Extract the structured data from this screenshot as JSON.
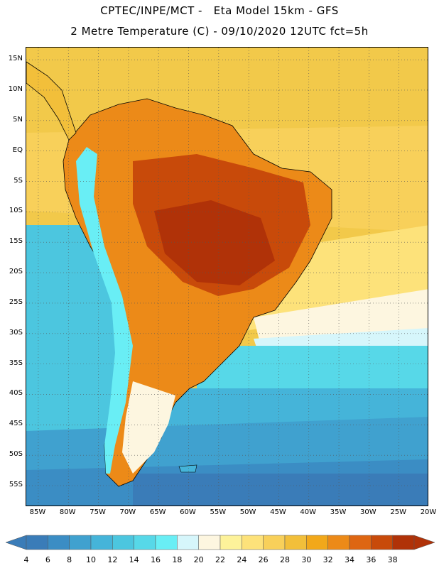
{
  "header": {
    "title_line1": "CPTEC/INPE/MCT -   Eta Model 15km - GFS",
    "title_line2": "2 Metre Temperature (C) - 09/10/2020 12UTC fct=5h"
  },
  "map": {
    "lat_ticks": [
      {
        "value": 15,
        "label": "15N"
      },
      {
        "value": 10,
        "label": "10N"
      },
      {
        "value": 5,
        "label": "5N"
      },
      {
        "value": 0,
        "label": "EQ"
      },
      {
        "value": -5,
        "label": "5S"
      },
      {
        "value": -10,
        "label": "10S"
      },
      {
        "value": -15,
        "label": "15S"
      },
      {
        "value": -20,
        "label": "20S"
      },
      {
        "value": -25,
        "label": "25S"
      },
      {
        "value": -30,
        "label": "30S"
      },
      {
        "value": -35,
        "label": "35S"
      },
      {
        "value": -40,
        "label": "40S"
      },
      {
        "value": -45,
        "label": "45S"
      },
      {
        "value": -50,
        "label": "50S"
      },
      {
        "value": -55,
        "label": "55S"
      }
    ],
    "lon_ticks": [
      {
        "value": -85,
        "label": "85W"
      },
      {
        "value": -80,
        "label": "80W"
      },
      {
        "value": -75,
        "label": "75W"
      },
      {
        "value": -70,
        "label": "70W"
      },
      {
        "value": -65,
        "label": "65W"
      },
      {
        "value": -60,
        "label": "60W"
      },
      {
        "value": -55,
        "label": "55W"
      },
      {
        "value": -50,
        "label": "50W"
      },
      {
        "value": -45,
        "label": "45W"
      },
      {
        "value": -40,
        "label": "40W"
      },
      {
        "value": -35,
        "label": "35W"
      },
      {
        "value": -30,
        "label": "30W"
      },
      {
        "value": -25,
        "label": "25W"
      },
      {
        "value": -20,
        "label": "20W"
      }
    ]
  },
  "colorbar": {
    "levels": [
      "4",
      "6",
      "8",
      "10",
      "12",
      "14",
      "16",
      "18",
      "20",
      "22",
      "24",
      "26",
      "28",
      "30",
      "32",
      "34",
      "36",
      "38"
    ],
    "colors": [
      "#3a7cb8",
      "#3b8dc4",
      "#40a1cf",
      "#45b4d9",
      "#4cc6df",
      "#57d8e8",
      "#69eef5",
      "#d6f6fb",
      "#fdf6e0",
      "#fdf29a",
      "#fde27a",
      "#f8d05a",
      "#f2bf3a",
      "#f2a81a",
      "#ec8a18",
      "#de6612",
      "#c84a0a",
      "#b03208"
    ]
  }
}
